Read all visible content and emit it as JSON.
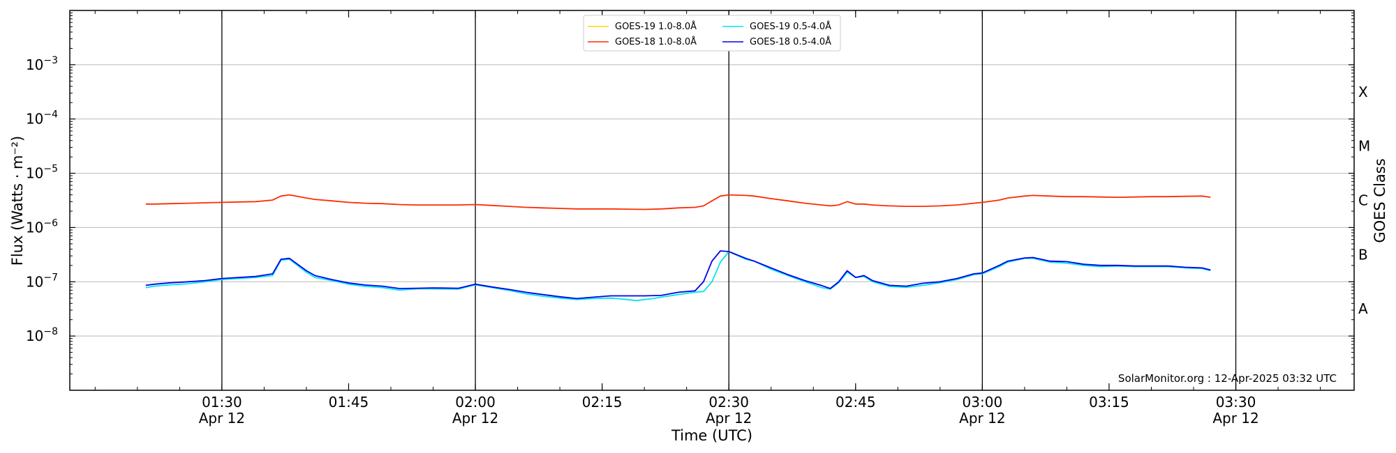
{
  "chart_data": {
    "type": "line",
    "xlabel": "Time (UTC)",
    "ylabel": "Flux (Watts · m⁻²)",
    "right_label": "GOES Class",
    "scale_y": "log",
    "ylim": [
      1e-09,
      0.01
    ],
    "x_range": [
      "01:12",
      "03:44"
    ],
    "y_ticks": [
      {
        "value": 1e-08,
        "base": "10",
        "exp": "−8"
      },
      {
        "value": 1e-07,
        "base": "10",
        "exp": "−7"
      },
      {
        "value": 1e-06,
        "base": "10",
        "exp": "−6"
      },
      {
        "value": 1e-05,
        "base": "10",
        "exp": "−5"
      },
      {
        "value": 0.0001,
        "base": "10",
        "exp": "−4"
      },
      {
        "value": 0.001,
        "base": "10",
        "exp": "−3"
      }
    ],
    "x_ticks": [
      {
        "time": "01:30",
        "label": "01:30",
        "date": "Apr 12"
      },
      {
        "time": "01:45",
        "label": "01:45",
        "date": ""
      },
      {
        "time": "02:00",
        "label": "02:00",
        "date": "Apr 12"
      },
      {
        "time": "02:15",
        "label": "02:15",
        "date": ""
      },
      {
        "time": "02:30",
        "label": "02:30",
        "date": "Apr 12"
      },
      {
        "time": "02:45",
        "label": "02:45",
        "date": ""
      },
      {
        "time": "03:00",
        "label": "03:00",
        "date": "Apr 12"
      },
      {
        "time": "03:15",
        "label": "03:15",
        "date": ""
      },
      {
        "time": "03:30",
        "label": "03:30",
        "date": "Apr 12"
      }
    ],
    "vlines": [
      "01:30",
      "02:00",
      "02:30",
      "03:00",
      "03:30"
    ],
    "grid": "horizontal",
    "legend_position": "top-center",
    "goes_classes": [
      {
        "label": "A",
        "value": 3.16e-08
      },
      {
        "label": "B",
        "value": 3.16e-07
      },
      {
        "label": "C",
        "value": 3.16e-06
      },
      {
        "label": "M",
        "value": 3.16e-05
      },
      {
        "label": "X",
        "value": 0.000316
      }
    ],
    "credit": "SolarMonitor.org : 12-Apr-2025 03:32 UTC",
    "series": [
      {
        "name": "GOES-19 1.0-8.0Å",
        "color": "#ffd700",
        "x": [],
        "values": []
      },
      {
        "name": "GOES-19 0.5-4.0Å",
        "color": "#00e5ee",
        "x": [
          "01:21",
          "01:22",
          "01:24",
          "01:26",
          "01:28",
          "01:30",
          "01:32",
          "01:34",
          "01:36",
          "01:37",
          "01:38",
          "01:40",
          "01:41",
          "01:43",
          "01:45",
          "01:47",
          "01:49",
          "01:51",
          "01:53",
          "01:55",
          "01:58",
          "02:00",
          "02:02",
          "02:04",
          "02:06",
          "02:08",
          "02:10",
          "02:12",
          "02:14",
          "02:16",
          "02:18",
          "02:19",
          "02:21",
          "02:22",
          "02:24",
          "02:26",
          "02:27",
          "02:28",
          "02:29",
          "02:30",
          "02:32",
          "02:33",
          "02:35",
          "02:37",
          "02:39",
          "02:41",
          "02:42",
          "02:43",
          "02:44",
          "02:45",
          "02:46",
          "02:47",
          "02:49",
          "02:51",
          "02:53",
          "02:55",
          "02:57",
          "02:59",
          "03:00",
          "03:02",
          "03:03",
          "03:05",
          "03:06",
          "03:08",
          "03:10",
          "03:12",
          "03:14",
          "03:16",
          "03:18",
          "03:20",
          "03:22",
          "03:24",
          "03:26",
          "03:27"
        ],
        "values": [
          7.8e-08,
          8.3e-08,
          8.8e-08,
          9.2e-08,
          1e-07,
          1.1e-07,
          1.15e-07,
          1.2e-07,
          1.3e-07,
          2.5e-07,
          2.6e-07,
          1.5e-07,
          1.2e-07,
          1.05e-07,
          9e-08,
          8.2e-08,
          7.8e-08,
          7e-08,
          7.4e-08,
          7.4e-08,
          7.3e-08,
          8.8e-08,
          7.8e-08,
          6.9e-08,
          6e-08,
          5.4e-08,
          5e-08,
          4.7e-08,
          4.9e-08,
          5e-08,
          4.7e-08,
          4.5e-08,
          4.9e-08,
          5.2e-08,
          5.8e-08,
          6.4e-08,
          6.6e-08,
          1e-07,
          2.3e-07,
          3.6e-07,
          2.6e-07,
          2.4e-07,
          1.7e-07,
          1.3e-07,
          1e-07,
          7.8e-08,
          7.3e-08,
          9.6e-08,
          1.5e-07,
          1.2e-07,
          1.25e-07,
          1e-07,
          8.2e-08,
          7.9e-08,
          8.6e-08,
          9.6e-08,
          1.1e-07,
          1.35e-07,
          1.4e-07,
          1.9e-07,
          2.3e-07,
          2.7e-07,
          2.7e-07,
          2.3e-07,
          2.2e-07,
          2e-07,
          1.9e-07,
          1.95e-07,
          1.9e-07,
          1.9e-07,
          1.9e-07,
          1.8e-07,
          1.75e-07,
          1.6e-07
        ]
      },
      {
        "name": "GOES-18 1.0-8.0Å",
        "color": "#ff2a00",
        "x": [
          "01:21",
          "01:22",
          "01:24",
          "01:26",
          "01:28",
          "01:30",
          "01:32",
          "01:34",
          "01:36",
          "01:37",
          "01:38",
          "01:40",
          "01:41",
          "01:43",
          "01:45",
          "01:47",
          "01:49",
          "01:51",
          "01:53",
          "01:55",
          "01:58",
          "02:00",
          "02:02",
          "02:04",
          "02:06",
          "02:08",
          "02:10",
          "02:12",
          "02:14",
          "02:16",
          "02:18",
          "02:20",
          "02:22",
          "02:24",
          "02:26",
          "02:27",
          "02:28",
          "02:29",
          "02:30",
          "02:32",
          "02:33",
          "02:35",
          "02:37",
          "02:39",
          "02:41",
          "02:42",
          "02:43",
          "02:44",
          "02:45",
          "02:46",
          "02:47",
          "02:49",
          "02:51",
          "02:53",
          "02:55",
          "02:57",
          "02:59",
          "03:00",
          "03:02",
          "03:03",
          "03:05",
          "03:06",
          "03:08",
          "03:10",
          "03:12",
          "03:14",
          "03:16",
          "03:18",
          "03:20",
          "03:22",
          "03:24",
          "03:26",
          "03:27"
        ],
        "values": [
          2.7e-06,
          2.7e-06,
          2.75e-06,
          2.8e-06,
          2.85e-06,
          2.9e-06,
          2.95e-06,
          3e-06,
          3.2e-06,
          3.8e-06,
          4e-06,
          3.5e-06,
          3.3e-06,
          3.1e-06,
          2.9e-06,
          2.8e-06,
          2.75e-06,
          2.65e-06,
          2.6e-06,
          2.6e-06,
          2.6e-06,
          2.65e-06,
          2.55e-06,
          2.45e-06,
          2.35e-06,
          2.3e-06,
          2.25e-06,
          2.2e-06,
          2.2e-06,
          2.2e-06,
          2.18e-06,
          2.15e-06,
          2.2e-06,
          2.3e-06,
          2.35e-06,
          2.5e-06,
          3.1e-06,
          3.8e-06,
          4e-06,
          3.9e-06,
          3.8e-06,
          3.4e-06,
          3.1e-06,
          2.8e-06,
          2.6e-06,
          2.5e-06,
          2.6e-06,
          3e-06,
          2.7e-06,
          2.7e-06,
          2.6e-06,
          2.5e-06,
          2.45e-06,
          2.45e-06,
          2.5e-06,
          2.6e-06,
          2.8e-06,
          2.9e-06,
          3.2e-06,
          3.5e-06,
          3.8e-06,
          3.9e-06,
          3.8e-06,
          3.7e-06,
          3.7e-06,
          3.65e-06,
          3.6e-06,
          3.65e-06,
          3.7e-06,
          3.7e-06,
          3.75e-06,
          3.8e-06,
          3.6e-06
        ]
      },
      {
        "name": "GOES-18 0.5-4.0Å",
        "color": "#0000ee",
        "x": [
          "01:21",
          "01:22",
          "01:24",
          "01:26",
          "01:28",
          "01:30",
          "01:32",
          "01:34",
          "01:36",
          "01:37",
          "01:38",
          "01:40",
          "01:41",
          "01:43",
          "01:45",
          "01:47",
          "01:49",
          "01:51",
          "01:53",
          "01:55",
          "01:58",
          "02:00",
          "02:02",
          "02:04",
          "02:06",
          "02:08",
          "02:10",
          "02:12",
          "02:14",
          "02:16",
          "02:18",
          "02:20",
          "02:22",
          "02:24",
          "02:26",
          "02:27",
          "02:28",
          "02:29",
          "02:30",
          "02:32",
          "02:33",
          "02:35",
          "02:37",
          "02:39",
          "02:41",
          "02:42",
          "02:43",
          "02:44",
          "02:45",
          "02:46",
          "02:47",
          "02:49",
          "02:51",
          "02:53",
          "02:55",
          "02:57",
          "02:59",
          "03:00",
          "03:02",
          "03:03",
          "03:05",
          "03:06",
          "03:08",
          "03:10",
          "03:12",
          "03:14",
          "03:16",
          "03:18",
          "03:20",
          "03:22",
          "03:24",
          "03:26",
          "03:27"
        ],
        "values": [
          8.6e-08,
          9e-08,
          9.6e-08,
          1e-07,
          1.05e-07,
          1.15e-07,
          1.2e-07,
          1.25e-07,
          1.4e-07,
          2.6e-07,
          2.7e-07,
          1.6e-07,
          1.3e-07,
          1.1e-07,
          9.5e-08,
          8.7e-08,
          8.3e-08,
          7.5e-08,
          7.6e-08,
          7.7e-08,
          7.6e-08,
          9e-08,
          8e-08,
          7.2e-08,
          6.4e-08,
          5.8e-08,
          5.3e-08,
          4.9e-08,
          5.2e-08,
          5.5e-08,
          5.5e-08,
          5.5e-08,
          5.6e-08,
          6.4e-08,
          6.8e-08,
          1e-07,
          2.4e-07,
          3.7e-07,
          3.6e-07,
          2.7e-07,
          2.4e-07,
          1.8e-07,
          1.35e-07,
          1.05e-07,
          8.5e-08,
          7.5e-08,
          1e-07,
          1.6e-07,
          1.2e-07,
          1.3e-07,
          1.05e-07,
          8.6e-08,
          8.3e-08,
          9.4e-08,
          1e-07,
          1.15e-07,
          1.4e-07,
          1.45e-07,
          2e-07,
          2.4e-07,
          2.75e-07,
          2.8e-07,
          2.4e-07,
          2.35e-07,
          2.1e-07,
          2e-07,
          2e-07,
          1.95e-07,
          1.95e-07,
          1.95e-07,
          1.85e-07,
          1.8e-07,
          1.65e-07
        ]
      }
    ]
  }
}
